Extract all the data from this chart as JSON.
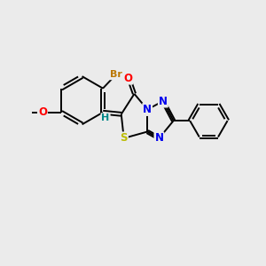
{
  "background_color": "#ebebeb",
  "bond_color": "#000000",
  "bond_width": 1.4,
  "atom_colors": {
    "O": "#ff0000",
    "N": "#0000ee",
    "S": "#bbbb00",
    "Br": "#bb7700",
    "H": "#008888",
    "C": "#000000"
  },
  "font_size": 8.5,
  "dbl_off": 0.06
}
